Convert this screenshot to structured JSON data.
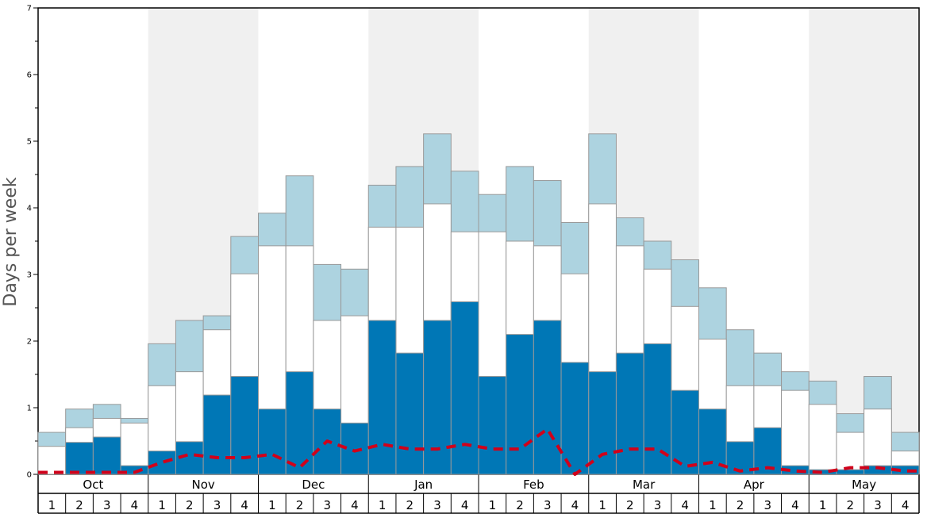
{
  "chart_data": {
    "type": "bar",
    "ylabel": "Days per week",
    "ylim": [
      0,
      7
    ],
    "yticks": [
      0,
      1,
      2,
      3,
      4,
      5,
      6,
      7
    ],
    "months": [
      "Oct",
      "Nov",
      "Dec",
      "Jan",
      "Feb",
      "Mar",
      "Apr",
      "May"
    ],
    "week_labels": [
      "1",
      "2",
      "3",
      "4"
    ],
    "colors": {
      "dark": "#0077b6",
      "mid": "#ffffff",
      "light": "#add3e0",
      "line": "#d0021b",
      "shade": "#f0f0f0"
    },
    "series": [
      {
        "key": "dark",
        "values": [
          0.0,
          0.48,
          0.56,
          0.13,
          0.35,
          0.49,
          1.19,
          1.47,
          0.98,
          1.54,
          0.98,
          0.77,
          2.31,
          1.82,
          2.31,
          2.59,
          1.47,
          2.1,
          2.31,
          1.68,
          1.54,
          1.82,
          1.96,
          1.26,
          0.98,
          0.49,
          0.7,
          0.13,
          0.07,
          0.07,
          0.13,
          0.13
        ]
      },
      {
        "key": "mid",
        "values": [
          0.42,
          0.7,
          0.84,
          0.77,
          1.33,
          1.54,
          2.17,
          3.01,
          3.43,
          3.43,
          2.31,
          2.38,
          3.71,
          3.71,
          4.06,
          3.64,
          3.64,
          3.5,
          3.43,
          3.01,
          4.06,
          3.43,
          3.08,
          2.52,
          2.03,
          1.33,
          1.33,
          1.26,
          1.05,
          0.63,
          0.98,
          0.35
        ]
      },
      {
        "key": "light",
        "values": [
          0.63,
          0.98,
          1.05,
          0.84,
          1.96,
          2.31,
          2.38,
          3.57,
          3.92,
          4.48,
          3.15,
          3.08,
          4.34,
          4.62,
          5.11,
          4.55,
          4.2,
          4.62,
          4.41,
          3.78,
          5.11,
          3.85,
          3.5,
          3.22,
          2.8,
          2.17,
          1.82,
          1.54,
          1.4,
          0.91,
          1.47,
          0.63
        ]
      }
    ],
    "line": {
      "key": "line",
      "values": [
        0.03,
        0.03,
        0.03,
        0.03,
        0.18,
        0.3,
        0.25,
        0.25,
        0.3,
        0.1,
        0.5,
        0.35,
        0.45,
        0.38,
        0.38,
        0.45,
        0.38,
        0.38,
        0.68,
        0.0,
        0.3,
        0.38,
        0.38,
        0.12,
        0.18,
        0.05,
        0.1,
        0.05,
        0.03,
        0.1,
        0.1,
        0.05
      ]
    }
  }
}
